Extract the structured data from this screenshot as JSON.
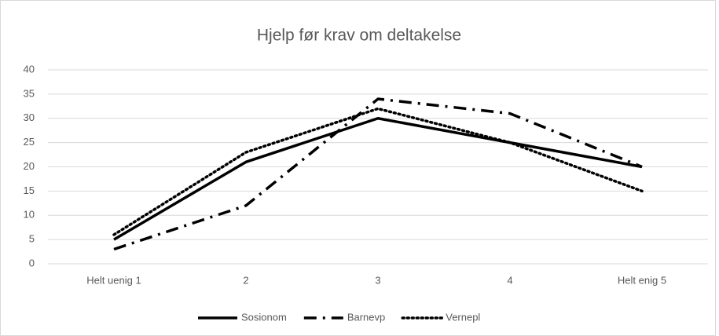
{
  "chart_data": {
    "type": "line",
    "title": "Hjelp før krav om deltakelse",
    "categories": [
      "Helt uenig 1",
      "2",
      "3",
      "4",
      "Helt enig 5"
    ],
    "series": [
      {
        "name": "Sosionom",
        "color": "#000000",
        "dash": "solid",
        "values": [
          5,
          21,
          30,
          25,
          20
        ]
      },
      {
        "name": "Barnevp",
        "color": "#000000",
        "dash": "dashdot",
        "values": [
          3,
          12,
          34,
          31,
          20
        ]
      },
      {
        "name": "Vernepl",
        "color": "#000000",
        "dash": "dot",
        "values": [
          6,
          23,
          32,
          25,
          15
        ]
      }
    ],
    "ylim": [
      0,
      40
    ],
    "yticks": [
      0,
      5,
      10,
      15,
      20,
      25,
      30,
      35,
      40
    ],
    "grid": true,
    "legend": "bottom"
  }
}
